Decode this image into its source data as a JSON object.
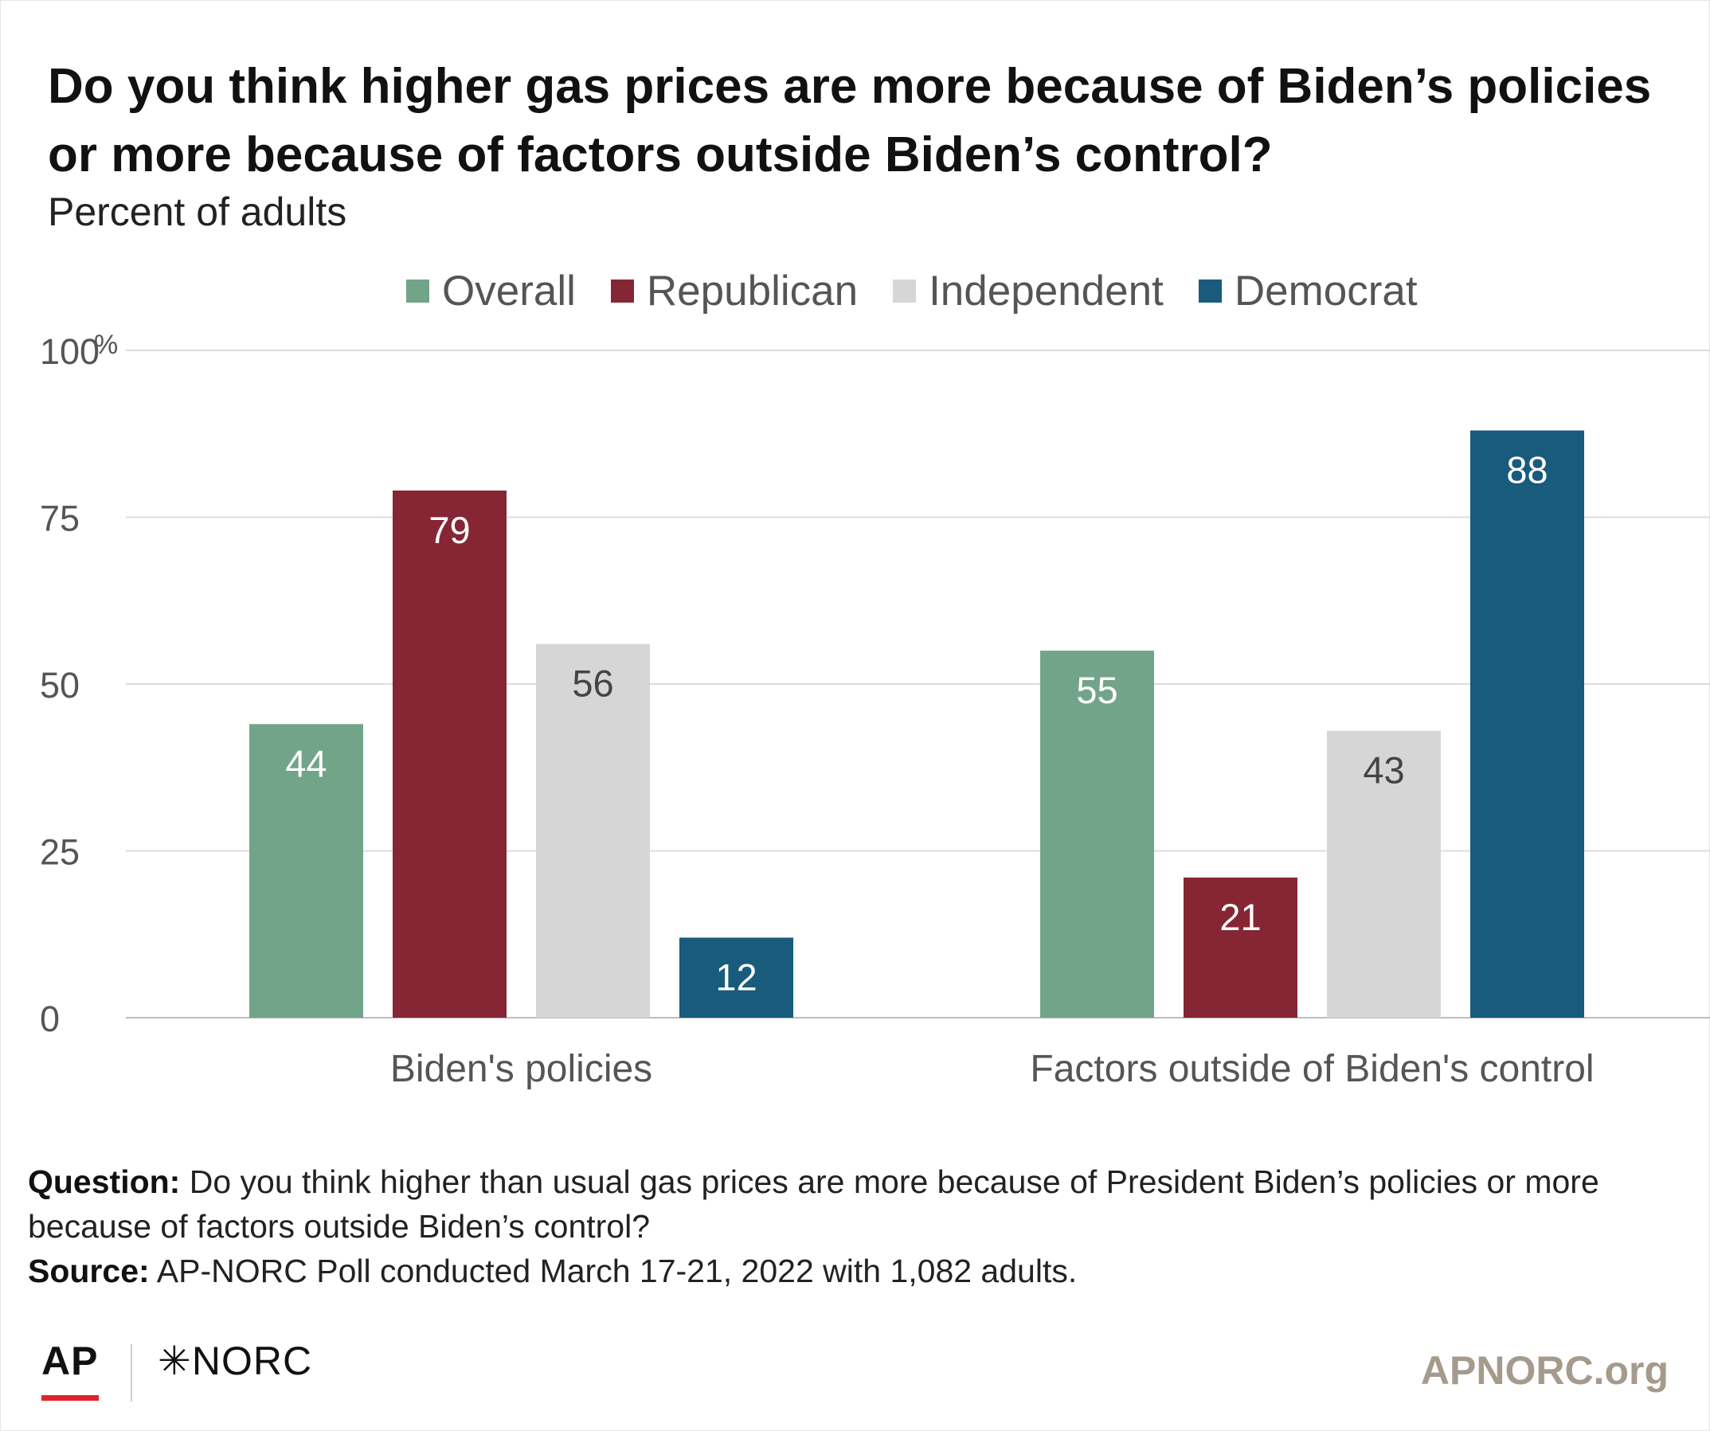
{
  "header": {
    "title": "Do you think higher gas prices are more because of Biden’s policies or more because of factors outside Biden’s control?",
    "subtitle": "Percent of adults"
  },
  "chart_data": {
    "type": "bar",
    "title": "Do you think higher gas prices are more because of Biden’s policies or more because of factors outside Biden’s control?",
    "subtitle": "Percent of adults",
    "categories": [
      "Biden's policies",
      "Factors outside of Biden's control"
    ],
    "series": [
      {
        "name": "Overall",
        "color": "#72a48a",
        "label_color": "#ffffff",
        "values": [
          44,
          55
        ]
      },
      {
        "name": "Republican",
        "color": "#862634",
        "label_color": "#ffffff",
        "values": [
          79,
          21
        ]
      },
      {
        "name": "Independent",
        "color": "#d6d6d6",
        "label_color": "#444444",
        "values": [
          56,
          43
        ]
      },
      {
        "name": "Democrat",
        "color": "#185b7c",
        "label_color": "#ffffff",
        "values": [
          12,
          88
        ]
      }
    ],
    "ylim": [
      0,
      100
    ],
    "yticks": [
      {
        "value": 0,
        "label": "0"
      },
      {
        "value": 25,
        "label": "25"
      },
      {
        "value": 50,
        "label": "50"
      },
      {
        "value": 75,
        "label": "75"
      },
      {
        "value": 100,
        "label": "100"
      }
    ],
    "y_unit_suffix": "%",
    "grid": true,
    "legend_position": "top"
  },
  "notes": {
    "question_label": "Question:",
    "question_text": " Do you think higher than usual gas prices are more because of President Biden’s policies or more because of factors outside Biden’s control?",
    "source_label": "Source:",
    "source_text": " AP-NORC Poll conducted March 17-21, 2022 with 1,082 adults."
  },
  "footer": {
    "ap_logo": "AP",
    "norc_logo": "✳NORC",
    "site": "APNORC.org"
  }
}
